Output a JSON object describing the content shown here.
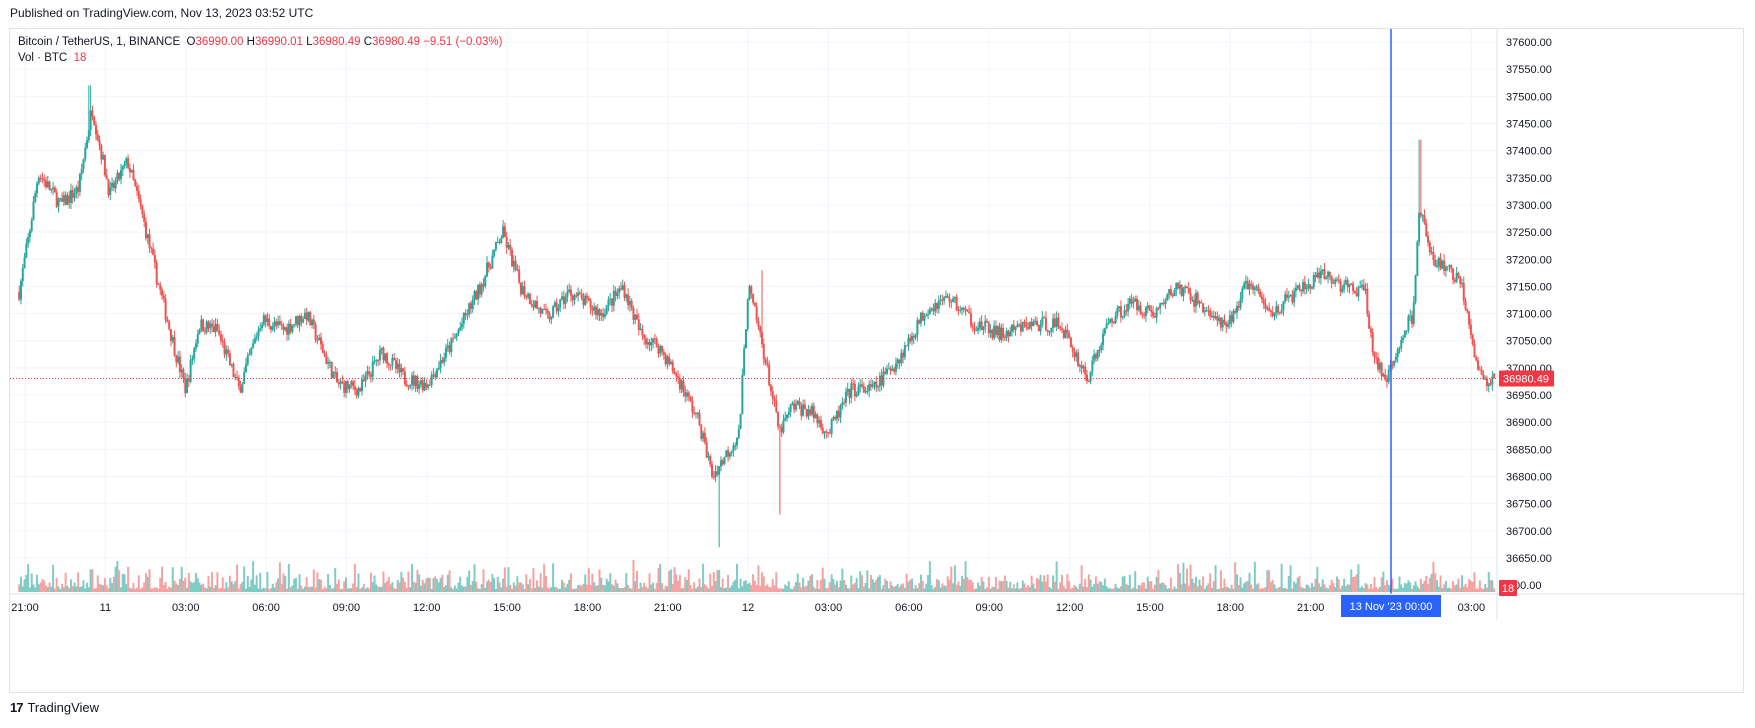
{
  "header": {
    "published": "Published on TradingView.com, Nov 13, 2023 03:52 UTC"
  },
  "legend": {
    "symbol": "Bitcoin / TetherUS, 1, BINANCE",
    "o_label": "O",
    "o_value": "36990.00",
    "h_label": "H",
    "h_value": "36990.01",
    "l_label": "L",
    "l_value": "36980.49",
    "c_label": "C",
    "c_value": "36980.49",
    "change": "−9.51 (−0.03%)",
    "vol_label": "Vol · BTC",
    "vol_value": "18"
  },
  "footer": {
    "logo_mark": "17",
    "brand": "TradingView"
  },
  "colors": {
    "up": "#26a69a",
    "down": "#ef5350",
    "grid": "#f0f3fa",
    "crosshair": "#2962ff",
    "last_price_bg": "#f23645",
    "vol_up": "#80cbc4",
    "vol_down": "#f5a3a2"
  },
  "chart_data": {
    "type": "candlestick",
    "symbol": "BTCUSDT",
    "interval": "1",
    "exchange": "BINANCE",
    "y_ticks": [
      "37600.00",
      "37550.00",
      "37500.00",
      "37450.00",
      "37400.00",
      "37350.00",
      "37300.00",
      "37250.00",
      "37200.00",
      "37150.00",
      "37100.00",
      "37050.00",
      "37000.00",
      "36950.00",
      "36900.00",
      "36850.00",
      "36800.00",
      "36750.00",
      "36700.00",
      "36650.00"
    ],
    "y_tick_partial": "00.00",
    "ylim": [
      36600,
      37625
    ],
    "x_ticks": [
      "21:00",
      "11",
      "03:00",
      "06:00",
      "09:00",
      "12:00",
      "15:00",
      "18:00",
      "21:00",
      "12",
      "03:00",
      "06:00",
      "09:00",
      "12:00",
      "15:00",
      "18:00",
      "21:00",
      "03:00"
    ],
    "crosshair_label": "13 Nov '23   00:00",
    "last_price": 36980.49,
    "last_price_label": "36980.49",
    "last_volume_label": "18",
    "grid": true,
    "close_path_keypoints": [
      {
        "t": "10 Nov 20:47",
        "close": 37140
      },
      {
        "t": "10 Nov 21:10",
        "close": 37250
      },
      {
        "t": "10 Nov 21:30",
        "close": 37360
      },
      {
        "t": "10 Nov 22:20",
        "close": 37300
      },
      {
        "t": "10 Nov 23:00",
        "close": 37330
      },
      {
        "t": "10 Nov 23:30",
        "close": 37480
      },
      {
        "t": "11 Nov 00:10",
        "close": 37320
      },
      {
        "t": "11 Nov 00:50",
        "close": 37380
      },
      {
        "t": "11 Nov 01:20",
        "close": 37290
      },
      {
        "t": "11 Nov 02:00",
        "close": 37150
      },
      {
        "t": "11 Nov 02:40",
        "close": 37020
      },
      {
        "t": "11 Nov 03:00",
        "close": 36960
      },
      {
        "t": "11 Nov 03:30",
        "close": 37080
      },
      {
        "t": "11 Nov 04:10",
        "close": 37070
      },
      {
        "t": "11 Nov 05:00",
        "close": 36960
      },
      {
        "t": "11 Nov 05:50",
        "close": 37090
      },
      {
        "t": "11 Nov 06:40",
        "close": 37070
      },
      {
        "t": "11 Nov 07:30",
        "close": 37100
      },
      {
        "t": "11 Nov 08:40",
        "close": 36970
      },
      {
        "t": "11 Nov 09:30",
        "close": 36960
      },
      {
        "t": "11 Nov 10:20",
        "close": 37030
      },
      {
        "t": "11 Nov 11:10",
        "close": 36980
      },
      {
        "t": "11 Nov 12:00",
        "close": 36970
      },
      {
        "t": "11 Nov 13:00",
        "close": 37050
      },
      {
        "t": "11 Nov 14:00",
        "close": 37150
      },
      {
        "t": "11 Nov 14:50",
        "close": 37250
      },
      {
        "t": "11 Nov 15:30",
        "close": 37150
      },
      {
        "t": "11 Nov 16:30",
        "close": 37090
      },
      {
        "t": "11 Nov 17:20",
        "close": 37140
      },
      {
        "t": "11 Nov 18:30",
        "close": 37100
      },
      {
        "t": "11 Nov 19:20",
        "close": 37150
      },
      {
        "t": "11 Nov 20:00",
        "close": 37060
      },
      {
        "t": "11 Nov 20:40",
        "close": 37040
      },
      {
        "t": "11 Nov 21:30",
        "close": 36970
      },
      {
        "t": "11 Nov 22:10",
        "close": 36900
      },
      {
        "t": "11 Nov 22:40",
        "close": 36800
      },
      {
        "t": "11 Nov 23:10",
        "close": 36840
      },
      {
        "t": "11 Nov 23:40",
        "close": 36880
      },
      {
        "t": "12 Nov 00:00",
        "close": 37150
      },
      {
        "t": "12 Nov 00:30",
        "close": 37050
      },
      {
        "t": "12 Nov 01:10",
        "close": 36880
      },
      {
        "t": "12 Nov 01:40",
        "close": 36930
      },
      {
        "t": "12 Nov 02:20",
        "close": 36920
      },
      {
        "t": "12 Nov 03:00",
        "close": 36880
      },
      {
        "t": "12 Nov 03:50",
        "close": 36960
      },
      {
        "t": "12 Nov 04:40",
        "close": 36960
      },
      {
        "t": "12 Nov 05:40",
        "close": 37020
      },
      {
        "t": "12 Nov 06:40",
        "close": 37110
      },
      {
        "t": "12 Nov 07:30",
        "close": 37130
      },
      {
        "t": "12 Nov 08:30",
        "close": 37080
      },
      {
        "t": "12 Nov 09:30",
        "close": 37060
      },
      {
        "t": "12 Nov 10:30",
        "close": 37080
      },
      {
        "t": "12 Nov 11:40",
        "close": 37080
      },
      {
        "t": "12 Nov 12:40",
        "close": 36980
      },
      {
        "t": "12 Nov 13:30",
        "close": 37090
      },
      {
        "t": "12 Nov 14:20",
        "close": 37120
      },
      {
        "t": "12 Nov 15:10",
        "close": 37100
      },
      {
        "t": "12 Nov 16:00",
        "close": 37150
      },
      {
        "t": "12 Nov 16:50",
        "close": 37120
      },
      {
        "t": "12 Nov 17:50",
        "close": 37070
      },
      {
        "t": "12 Nov 18:40",
        "close": 37160
      },
      {
        "t": "12 Nov 19:30",
        "close": 37100
      },
      {
        "t": "12 Nov 20:30",
        "close": 37140
      },
      {
        "t": "12 Nov 21:30",
        "close": 37170
      },
      {
        "t": "12 Nov 22:40",
        "close": 37140
      },
      {
        "t": "12 Nov 23:00",
        "close": 37150
      },
      {
        "t": "12 Nov 23:20",
        "close": 37030
      },
      {
        "t": "12 Nov 23:50",
        "close": 36970
      },
      {
        "t": "13 Nov 00:20",
        "close": 37050
      },
      {
        "t": "13 Nov 00:50",
        "close": 37100
      },
      {
        "t": "13 Nov 01:05",
        "close": 37300
      },
      {
        "t": "13 Nov 01:30",
        "close": 37200
      },
      {
        "t": "13 Nov 02:10",
        "close": 37180
      },
      {
        "t": "13 Nov 02:40",
        "close": 37150
      },
      {
        "t": "13 Nov 03:10",
        "close": 37020
      },
      {
        "t": "13 Nov 03:30",
        "close": 36970
      },
      {
        "t": "13 Nov 03:52",
        "close": 36980.49
      }
    ],
    "notable_extremes": [
      {
        "t": "10 Nov 23:25",
        "high": 37520
      },
      {
        "t": "11 Nov 22:55",
        "low": 36670
      },
      {
        "t": "12 Nov 00:30",
        "high": 37180
      },
      {
        "t": "12 Nov 01:10",
        "low": 36730
      },
      {
        "t": "13 Nov 01:05",
        "high": 37420
      }
    ]
  }
}
